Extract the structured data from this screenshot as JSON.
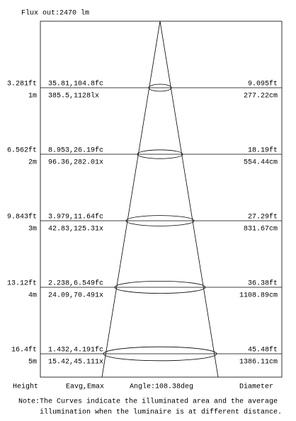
{
  "header": {
    "flux": "Flux out:2470 lm"
  },
  "rows": [
    {
      "height_ft": "3.281ft",
      "height_m": "1m",
      "e_fc": "35.81,104.8fc",
      "e_lx": "385.5,1128lx",
      "diameter_ft": "9.095ft",
      "diameter_cm": "277.22cm"
    },
    {
      "height_ft": "6.562ft",
      "height_m": "2m",
      "e_fc": "8.953,26.19fc",
      "e_lx": "96.36,282.01x",
      "diameter_ft": "18.19ft",
      "diameter_cm": "554.44cm"
    },
    {
      "height_ft": "9.843ft",
      "height_m": "3m",
      "e_fc": "3.979,11.64fc",
      "e_lx": "42.83,125.31x",
      "diameter_ft": "27.29ft",
      "diameter_cm": "831.67cm"
    },
    {
      "height_ft": "13.12ft",
      "height_m": "4m",
      "e_fc": "2.238,6.549fc",
      "e_lx": "24.09,70.491x",
      "diameter_ft": "36.38ft",
      "diameter_cm": "1108.89cm"
    },
    {
      "height_ft": "16.4ft",
      "height_m": "5m",
      "e_fc": "1.432,4.191fc",
      "e_lx": "15.42,45.111x",
      "diameter_ft": "45.48ft",
      "diameter_cm": "1386.11cm"
    }
  ],
  "footer": {
    "height": "Height",
    "eavg": "Eavg,Emax",
    "angle": "Angle:108.38deg",
    "diameter": "Diameter",
    "note": [
      "Note:The Curves indicate the illuminated area and the average",
      "illumination when the luminaire is at different distance."
    ]
  }
}
